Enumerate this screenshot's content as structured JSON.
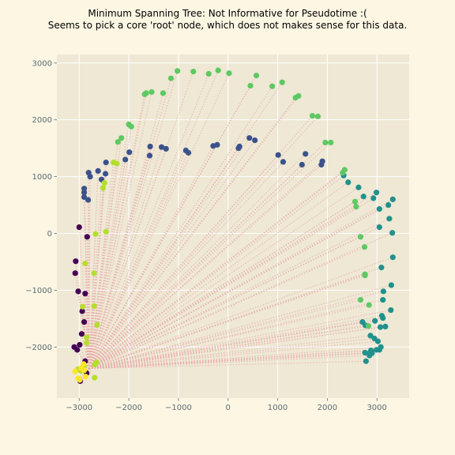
{
  "chart_data": {
    "type": "scatter",
    "title_line1": "Minimum Spanning Tree: Not Informative for Pseudotime :(",
    "title_line2": "Seems to pick a core 'root' node, which does not makes sense for this data.",
    "xlabel": "",
    "ylabel": "",
    "xlim": [
      -3450,
      3650
    ],
    "ylim": [
      -2900,
      3150
    ],
    "x_ticks": [
      -3000,
      -2000,
      -1000,
      0,
      1000,
      2000,
      3000
    ],
    "y_ticks": [
      -2000,
      -1000,
      0,
      1000,
      2000,
      3000
    ],
    "x_tick_labels": [
      "−3000",
      "−2000",
      "−1000",
      "0",
      "1000",
      "2000",
      "3000"
    ],
    "y_tick_labels": [
      "−2000",
      "−1000",
      "0",
      "1000",
      "2000",
      "3000"
    ],
    "grid": true,
    "plot_background": "#eee8d5",
    "page_background": "#fdf6e3",
    "grid_color": "#ffffff",
    "edge_color": "#e8a8a8",
    "root": [
      -2800,
      -2380
    ],
    "edges_style": "dotted",
    "series": [
      {
        "color": "#440154",
        "points": [
          [
            -3100,
            -2000
          ],
          [
            -3040,
            -2050
          ],
          [
            -2990,
            -1960
          ],
          [
            -2950,
            -1770
          ],
          [
            -2900,
            -1560
          ],
          [
            -2940,
            -1370
          ],
          [
            -2880,
            -1060
          ],
          [
            -3020,
            -1020
          ],
          [
            -3080,
            -700
          ],
          [
            -3070,
            -490
          ],
          [
            -2840,
            -60
          ],
          [
            -3000,
            110
          ],
          [
            -2880,
            -2250
          ],
          [
            -2850,
            -2460
          ],
          [
            -2980,
            -2600
          ]
        ]
      },
      {
        "color": "#3b528b",
        "points": [
          [
            -2820,
            590
          ],
          [
            -2900,
            640
          ],
          [
            -2900,
            720
          ],
          [
            -2900,
            790
          ],
          [
            -2780,
            1000
          ],
          [
            -2810,
            1070
          ],
          [
            -2620,
            1100
          ],
          [
            -2550,
            950
          ],
          [
            -2470,
            1050
          ],
          [
            -2460,
            1250
          ],
          [
            -2070,
            1300
          ],
          [
            -1990,
            1430
          ],
          [
            -1580,
            1370
          ],
          [
            -1570,
            1530
          ],
          [
            -1340,
            1520
          ],
          [
            -1250,
            1490
          ],
          [
            -850,
            1460
          ],
          [
            -800,
            1420
          ],
          [
            -300,
            1540
          ],
          [
            -220,
            1560
          ],
          [
            210,
            1500
          ],
          [
            230,
            1530
          ],
          [
            430,
            1680
          ],
          [
            540,
            1640
          ],
          [
            1010,
            1380
          ],
          [
            1110,
            1260
          ],
          [
            1490,
            1210
          ],
          [
            1560,
            1400
          ],
          [
            1880,
            1210
          ],
          [
            1900,
            1270
          ]
        ]
      },
      {
        "color": "#21918c",
        "points": [
          [
            2330,
            1020
          ],
          [
            2420,
            900
          ],
          [
            2630,
            810
          ],
          [
            2730,
            650
          ],
          [
            2930,
            620
          ],
          [
            2990,
            720
          ],
          [
            3050,
            430
          ],
          [
            3230,
            500
          ],
          [
            3320,
            600
          ],
          [
            3250,
            260
          ],
          [
            3310,
            10
          ],
          [
            3050,
            110
          ],
          [
            3320,
            -420
          ],
          [
            3090,
            -600
          ],
          [
            3290,
            -910
          ],
          [
            3130,
            -1020
          ],
          [
            3120,
            -1170
          ],
          [
            3280,
            -1350
          ],
          [
            3100,
            -1450
          ],
          [
            3120,
            -1490
          ],
          [
            3070,
            -1650
          ],
          [
            3170,
            -1640
          ],
          [
            2770,
            -1620
          ],
          [
            2710,
            -1560
          ],
          [
            2960,
            -1540
          ],
          [
            2870,
            -1800
          ],
          [
            2950,
            -1850
          ],
          [
            3020,
            -1900
          ],
          [
            3080,
            -2000
          ],
          [
            3050,
            -2050
          ],
          [
            2990,
            -2050
          ],
          [
            2880,
            -2060
          ],
          [
            2760,
            -2100
          ],
          [
            2860,
            -2100
          ],
          [
            2900,
            -2110
          ],
          [
            2850,
            -2150
          ],
          [
            2780,
            -2250
          ]
        ]
      },
      {
        "color": "#5ec962",
        "points": [
          [
            2310,
            1070
          ],
          [
            2350,
            1120
          ],
          [
            2560,
            560
          ],
          [
            2580,
            470
          ],
          [
            2670,
            -60
          ],
          [
            2750,
            -240
          ],
          [
            2760,
            -720
          ],
          [
            2760,
            -740
          ],
          [
            2670,
            -1170
          ],
          [
            2840,
            -1260
          ],
          [
            2830,
            -1630
          ],
          [
            1960,
            1600
          ],
          [
            2070,
            1600
          ],
          [
            1700,
            2070
          ],
          [
            1810,
            2060
          ],
          [
            1420,
            2420
          ],
          [
            1360,
            2390
          ],
          [
            1090,
            2660
          ],
          [
            890,
            2590
          ],
          [
            570,
            2780
          ],
          [
            450,
            2600
          ],
          [
            20,
            2820
          ],
          [
            -200,
            2870
          ],
          [
            -390,
            2810
          ],
          [
            -700,
            2850
          ],
          [
            -1020,
            2860
          ],
          [
            -1150,
            2730
          ],
          [
            -1310,
            2470
          ],
          [
            -1540,
            2490
          ],
          [
            -1650,
            2470
          ],
          [
            -1680,
            2450
          ],
          [
            -1950,
            1880
          ],
          [
            -2000,
            1920
          ],
          [
            -2150,
            1680
          ],
          [
            -2220,
            1610
          ]
        ]
      },
      {
        "color": "#b5de2b",
        "points": [
          [
            -2520,
            800
          ],
          [
            -2490,
            890
          ],
          [
            -2310,
            1250
          ],
          [
            -2240,
            1230
          ],
          [
            -2460,
            30
          ],
          [
            -2670,
            -10
          ],
          [
            -2880,
            -530
          ],
          [
            -2700,
            -700
          ],
          [
            -2930,
            -1290
          ],
          [
            -2700,
            -1280
          ],
          [
            -2640,
            -1610
          ],
          [
            -2850,
            -1830
          ],
          [
            -2850,
            -1930
          ],
          [
            -2650,
            -2270
          ],
          [
            -2690,
            -2310
          ],
          [
            -2900,
            -2340
          ],
          [
            -2970,
            -2420
          ],
          [
            -3020,
            -2390
          ],
          [
            -2690,
            -2540
          ]
        ]
      },
      {
        "color": "#fde725",
        "points": [
          [
            -3080,
            -2430
          ],
          [
            -2960,
            -2370
          ],
          [
            -2910,
            -2300
          ],
          [
            -2900,
            -2410
          ],
          [
            -2870,
            -2520
          ],
          [
            -2990,
            -2580
          ],
          [
            -3020,
            -2550
          ]
        ]
      }
    ]
  }
}
